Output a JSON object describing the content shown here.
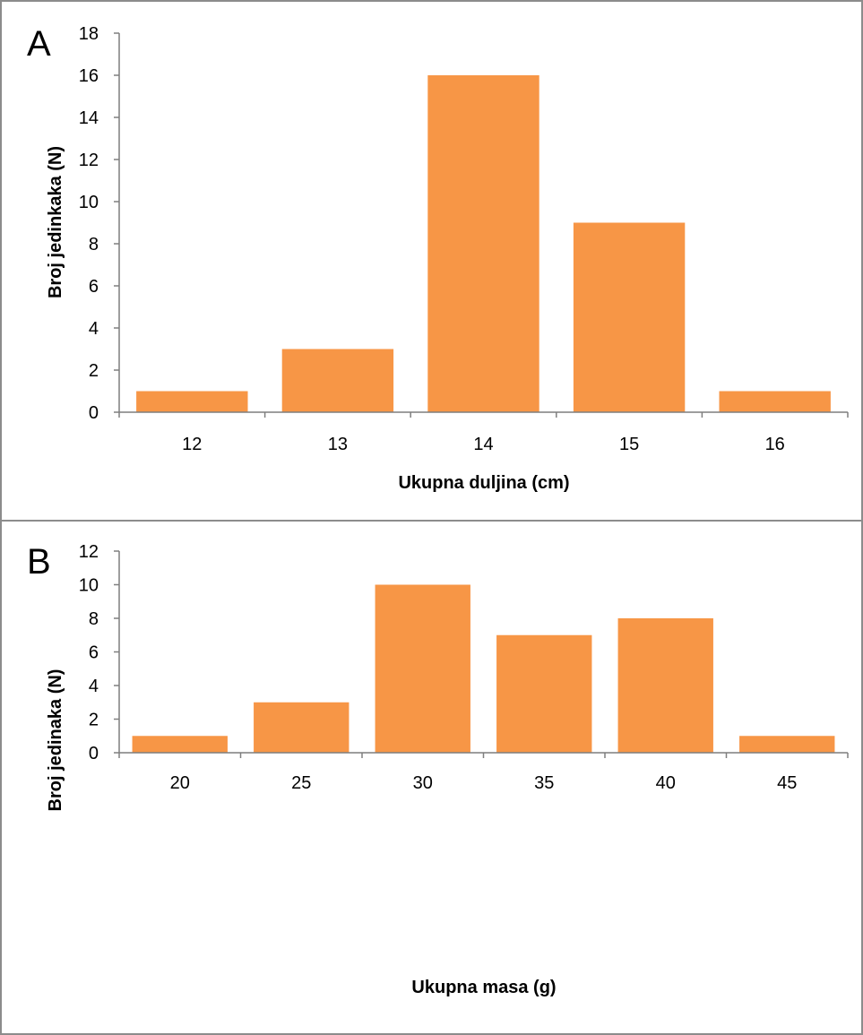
{
  "colors": {
    "bar": "#f79646",
    "axis": "#7f7f7f",
    "frame": "#8c8c8c"
  },
  "chart_data": [
    {
      "type": "bar",
      "panel_label": "A",
      "categories": [
        "12",
        "13",
        "14",
        "15",
        "16"
      ],
      "values": [
        1,
        3,
        16,
        9,
        1
      ],
      "xlabel": "Ukupna duljina (cm)",
      "ylabel": "Broj jedinkaka (N)",
      "ylim": [
        0,
        18
      ],
      "yticks": [
        "0",
        "2",
        "4",
        "6",
        "8",
        "10",
        "12",
        "14",
        "16",
        "18"
      ],
      "grid": false,
      "legend": "none"
    },
    {
      "type": "bar",
      "panel_label": "B",
      "categories": [
        "20",
        "25",
        "30",
        "35",
        "40",
        "45"
      ],
      "values": [
        1,
        3,
        10,
        7,
        8,
        1
      ],
      "xlabel": "Ukupna masa (g)",
      "ylabel": "Broj jedinaka (N)",
      "ylim": [
        0,
        12
      ],
      "yticks": [
        "0",
        "2",
        "4",
        "6",
        "8",
        "10",
        "12"
      ],
      "grid": false,
      "legend": "none"
    }
  ]
}
